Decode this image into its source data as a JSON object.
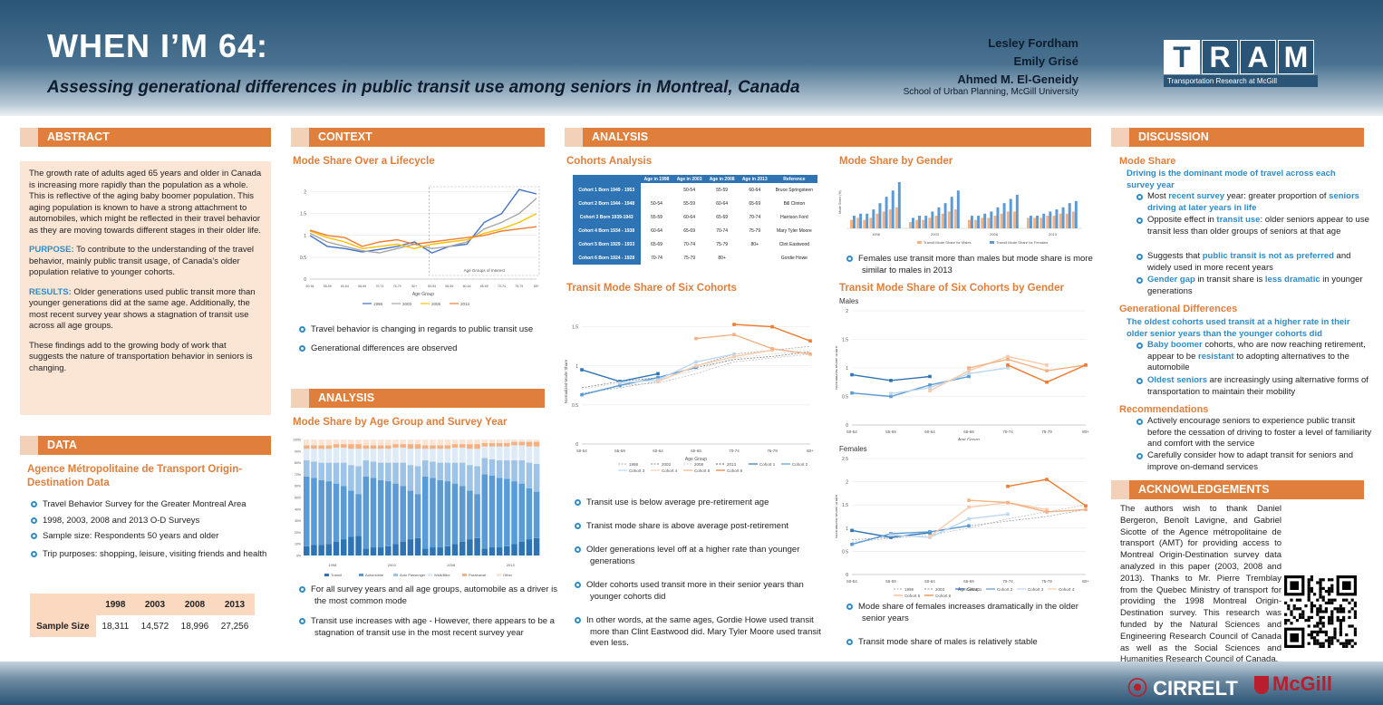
{
  "header": {
    "title": "WHEN I’M 64:",
    "subtitle": "Assessing generational differences in public transit use among seniors in Montreal, Canada",
    "authors": [
      "Lesley Fordham",
      "Emily Grisé",
      "Ahmed M. El-Geneidy"
    ],
    "affiliation": "School of Urban Planning, McGill University",
    "logo_letters": [
      "T",
      "R",
      "A",
      "M"
    ],
    "logo_sub": "Transportation Research at McGill"
  },
  "abstract": {
    "heading": "ABSTRACT",
    "p1": "The growth rate of adults aged 65 years and older in Canada is increasing more rapidly than the population as a whole.  This is reflective of the aging baby boomer population. This aging population is known to have a strong attachment to automobiles, which might be reflected in their travel behavior as they are moving towards different stages in their older life.",
    "purpose_label": "PURPOSE:",
    "purpose": " To contribute to the understanding of the travel behavior, mainly public transit usage, of Canada’s older population relative to younger cohorts.",
    "results_label": "RESULTS:",
    "results": " Older generations used public transit more than younger generations did at the same age. Additionally, the most recent survey year shows a stagnation of transit use across all age groups.",
    "p4": "These findings add to the growing body of work that suggests the nature of transportation behavior in seniors is changing."
  },
  "data": {
    "heading": "DATA",
    "subheading": "Agence Métropolitaine de Transport Origin-Destination Data",
    "bullets": [
      "Travel Behavior Survey for the Greater Montreal Area",
      "1998, 2003, 2008 and 2013 O-D Surveys",
      "Sample size: Respondents 50 years and older",
      "Trip purposes: shopping, leisure, visiting friends and health"
    ],
    "table": {
      "years": [
        "1998",
        "2003",
        "2008",
        "2013"
      ],
      "row_label": "Sample Size",
      "values": [
        "18,311",
        "14,572",
        "18,996",
        "27,256"
      ]
    }
  },
  "context": {
    "heading": "CONTEXT",
    "subheading": "Mode Share Over a Lifecycle",
    "bullets": [
      "Travel behavior is changing in regards to public transit use",
      "Generational differences are observed"
    ]
  },
  "analysis_left": {
    "heading": "ANALYSIS",
    "subheading": "Mode Share by Age Group and Survey Year",
    "bullets": [
      "For all survey years and all age groups, automobile as a driver is the most common mode",
      "Transit use increases with age - However, there appears to be a stagnation of transit use in the most recent survey year"
    ]
  },
  "analysis_main": {
    "heading": "ANALYSIS",
    "cohorts_title": "Cohorts Analysis",
    "cohort_table": {
      "headers": [
        "",
        "Age in 1998",
        "Age in 2003",
        "Age in 2008",
        "Age in 2013",
        "Reference"
      ],
      "rows": [
        [
          "Cohort 1 Born 1949 - 1953",
          "",
          "50-54",
          "55-59",
          "60-64",
          "Bruce Springsteen"
        ],
        [
          "Cohort 2 Born 1944 - 1948",
          "50-54",
          "55-59",
          "60-64",
          "65-69",
          "Bill Clinton"
        ],
        [
          "Cohort 3 Born 1939-1943",
          "55-59",
          "60-64",
          "65-69",
          "70-74",
          "Harrison Ford"
        ],
        [
          "Cohort 4 Born 1934 - 1938",
          "60-64",
          "65-69",
          "70-74",
          "75-79",
          "Mary Tyler Moore"
        ],
        [
          "Cohort 5 Born 1929 - 1933",
          "65-69",
          "70-74",
          "75-79",
          "80+",
          "Clint Eastwood"
        ],
        [
          "Cohort 6 Born 1924 - 1928",
          "70-74",
          "75-79",
          "80+",
          "",
          "Gordie Howe"
        ]
      ]
    },
    "six_title": "Transit Mode Share of Six Cohorts",
    "six_bullets": [
      "Transit use is below average pre-retirement age",
      "Tranist mode share is above average post-retirement",
      "Older generations level off at a higher rate than younger generations",
      "Older cohorts used transit more in their senior years than younger cohorts did",
      "In other words, at the same ages, Gordie Howe used transit more than Clint Eastwood did. Mary Tyler Moore used transit even less."
    ],
    "gender_title": "Mode Share by Gender",
    "gender_bullets": [
      "Females use transit more than males but mode share is more similar to males in 2013"
    ],
    "sixg_title": "Transit Mode Share of Six Cohorts by Gender",
    "sixg_bullets": [
      "Mode share of females increases dramatically in the older senior years",
      "Transit mode share of males is relatively stable"
    ]
  },
  "discussion": {
    "heading": "DISCUSSION",
    "h1": "Mode Share",
    "p1": "Driving is the dominant mode of travel across each survey year",
    "b1": [
      {
        "pre": "Most ",
        "hl": "recent survey",
        "post": " year: greater proportion of ",
        "hl2": "seniors driving at later years in life",
        "post2": ""
      },
      {
        "pre": "Opposite effect in ",
        "hl": "transit use",
        "post": ": older seniors appear to use transit less than older groups of seniors at that age",
        "hl2": "",
        "post2": ""
      },
      {
        "pre": "Suggests that ",
        "hl": "public transit is not as preferred",
        "post": " and widely used in more recent years",
        "hl2": "",
        "post2": ""
      },
      {
        "pre": "",
        "hl": "Gender gap",
        "post": " in transit share is ",
        "hl2": "less dramatic",
        "post2": " in younger generations"
      }
    ],
    "h2": "Generational Differences",
    "p2": "The oldest cohorts used transit at a higher rate in their older senior years than the younger cohorts did",
    "b2": [
      {
        "pre": "",
        "hl": "Baby boomer",
        "post": " cohorts, who are now reaching retirement, appear to be ",
        "hl2": "resistant",
        "post2": " to adopting alternatives to the automobile"
      },
      {
        "pre": "",
        "hl": "Oldest seniors",
        "post": " are increasingly using alternative forms of transportation to maintain their mobility",
        "hl2": "",
        "post2": ""
      }
    ],
    "h3": "Recommendations",
    "b3": [
      "Actively encourage seniors to experience public transit before the cessation of driving to foster a level of familiarity and comfort with the service",
      "Carefully consider how to adapt transit for seniors and improve on-demand services"
    ]
  },
  "ack": {
    "heading": "ACKNOWLEDGEMENTS",
    "text": "The authors wish to thank Daniel Bergeron, Benoît Lavigne, and Gabriel Sicotte of the Agence métropolitaine de transport (AMT) for providing access to Montreal Origin-Destination survey data analyzed in this paper (2003, 2008 and 2013). Thanks to Mr. Pierre Tremblay from the Quebec Ministry of transport for providing the 1998 Montreal Origin-Destination survey. This research was funded by the Natural Sciences and Engineering Research Council of Canada as well as the Social Sciences and Humanities Research Council of Canada."
  },
  "footer": {
    "cirrelt": "CIRRELT",
    "mcgill": "McGill"
  },
  "colors": {
    "accent": "#e07f3c",
    "blue": "#2e8cc8",
    "header": "#2a5577",
    "panel": "#fbe5d5"
  },
  "chart_data": [
    {
      "id": "lifecycle",
      "type": "line",
      "categories": [
        "50-54",
        "55-59",
        "60-64",
        "65-69",
        "70-74",
        "75-79",
        "80+",
        "50-54",
        "55-59",
        "60-64",
        "65-69",
        "70-74",
        "75-79",
        "80+"
      ],
      "series": [
        {
          "name": "1998",
          "color": "#4472c4",
          "values": [
            1.0,
            0.75,
            0.7,
            0.62,
            0.68,
            0.75,
            0.85,
            0.6,
            0.75,
            0.8,
            1.3,
            1.5,
            2.05,
            1.95
          ]
        },
        {
          "name": "2003",
          "color": "#a5a5a5",
          "values": [
            1.05,
            0.85,
            0.75,
            0.65,
            0.6,
            0.7,
            0.8,
            0.7,
            0.75,
            0.85,
            1.15,
            1.3,
            1.5,
            1.85
          ]
        },
        {
          "name": "2008",
          "color": "#ffc000",
          "values": [
            1.1,
            0.95,
            0.85,
            0.7,
            0.75,
            0.8,
            0.7,
            0.8,
            0.85,
            0.9,
            1.05,
            1.15,
            1.3,
            1.5
          ]
        },
        {
          "name": "2013",
          "color": "#ed7d31",
          "values": [
            1.12,
            1.0,
            0.95,
            0.75,
            0.85,
            0.9,
            0.8,
            0.85,
            0.9,
            0.95,
            1.0,
            1.1,
            1.15,
            1.2
          ]
        }
      ],
      "ylim": [
        0,
        2.2
      ],
      "yticks": [
        "0",
        "0.5",
        "1",
        "1.5",
        "2"
      ],
      "xlabel": "Age Group",
      "annotation": "Age Groups of Interest"
    },
    {
      "id": "agegroup",
      "type": "bar",
      "categories": [
        "1998",
        "2003",
        "2008",
        "2013"
      ],
      "groups_per_year": 8,
      "series": [
        {
          "name": "Transit",
          "color": "#2e74b5"
        },
        {
          "name": "Automobile",
          "color": "#5b9bd5"
        },
        {
          "name": "Auto Passenger",
          "color": "#9dc3e6"
        },
        {
          "name": "Walk/Bike",
          "color": "#deebf7"
        },
        {
          "name": "Paratransit",
          "color": "#f4b183"
        },
        {
          "name": "Other",
          "color": "#fbe5d6"
        }
      ],
      "ylim": [
        0,
        100
      ],
      "yticks": [
        "0%",
        "10%",
        "20%",
        "30%",
        "40%",
        "50%",
        "60%",
        "70%",
        "80%",
        "90%",
        "100%"
      ]
    },
    {
      "id": "six_cohorts",
      "type": "line",
      "categories": [
        "50-54",
        "55-59",
        "60-64",
        "65-69",
        "70-74",
        "75-79",
        "80+"
      ],
      "series": [
        {
          "name": "1998",
          "color": "#bfbfbf",
          "dashed": true,
          "values": [
            0.62,
            0.75,
            0.78,
            0.9,
            1.05,
            1.1,
            1.15
          ]
        },
        {
          "name": "2003",
          "color": "#a5a5a5",
          "dashed": true,
          "values": [
            0.65,
            0.72,
            0.8,
            1.0,
            1.15,
            1.2,
            1.25
          ]
        },
        {
          "name": "2008",
          "color": "#d9d9d9",
          "dashed": true,
          "values": [
            0.7,
            0.78,
            0.82,
            0.95,
            1.1,
            1.15,
            1.2
          ]
        },
        {
          "name": "2013",
          "color": "#7f7f7f",
          "dashed": true,
          "values": [
            0.72,
            0.8,
            0.85,
            0.98,
            1.08,
            1.12,
            1.18
          ]
        },
        {
          "name": "Cohort 1",
          "color": "#2e74b5",
          "values": [
            0.95,
            0.8,
            0.9,
            null,
            null,
            null,
            null
          ]
        },
        {
          "name": "Cohort 2",
          "color": "#5b9bd5",
          "values": [
            0.63,
            0.75,
            0.85,
            0.98,
            null,
            null,
            null
          ]
        },
        {
          "name": "Cohort 3",
          "color": "#bdd7ee",
          "values": [
            null,
            0.78,
            0.82,
            1.05,
            1.15,
            null,
            null
          ]
        },
        {
          "name": "Cohort 4",
          "color": "#f8cbad",
          "values": [
            null,
            null,
            0.8,
            1.0,
            1.12,
            1.2,
            null
          ]
        },
        {
          "name": "Cohort 5",
          "color": "#f4b183",
          "values": [
            null,
            null,
            null,
            1.35,
            1.4,
            1.22,
            1.15
          ]
        },
        {
          "name": "Cohort 6",
          "color": "#ed7d31",
          "values": [
            null,
            null,
            null,
            null,
            1.53,
            1.5,
            1.32
          ]
        }
      ],
      "ylim": [
        0,
        1.6
      ],
      "yticks": [
        "0",
        "0.5",
        "1",
        "1.5"
      ],
      "xlabel": "Age Group",
      "ylabel": "Normalized Mode Share"
    },
    {
      "id": "gender",
      "type": "bar",
      "categories": [
        "1998",
        "2003",
        "2008",
        "2013"
      ],
      "series": [
        {
          "name": "Transit Mode Share for Males",
          "color": "#f4b183",
          "values": [
            [
              4,
              5,
              4,
              5,
              7,
              8,
              9,
              10
            ],
            [
              3,
              4,
              4,
              5,
              6,
              7,
              8,
              9
            ],
            [
              4,
              4,
              5,
              5,
              6,
              7,
              8,
              8
            ],
            [
              5,
              5,
              5,
              6,
              6,
              7,
              7,
              8
            ]
          ]
        },
        {
          "name": "Transit Mode Share for Females",
          "color": "#5b9bd5",
          "values": [
            [
              6,
              7,
              7,
              9,
              12,
              15,
              18,
              22
            ],
            [
              5,
              6,
              6,
              8,
              10,
              12,
              15,
              18
            ],
            [
              6,
              6,
              7,
              8,
              10,
              12,
              14,
              16
            ],
            [
              6,
              6,
              7,
              8,
              9,
              10,
              12,
              13
            ]
          ]
        }
      ],
      "ylim": [
        0,
        25
      ],
      "ylabel": "Mode Share (%)"
    },
    {
      "id": "males",
      "type": "line",
      "title": "Males",
      "categories": [
        "50-54",
        "55-59",
        "60-64",
        "65-69",
        "70-74",
        "75-79",
        "80+"
      ],
      "series": [
        {
          "name": "Cohort 1",
          "color": "#2e74b5",
          "values": [
            0.88,
            0.78,
            0.85,
            null,
            null,
            null,
            null
          ]
        },
        {
          "name": "Cohort 2",
          "color": "#5b9bd5",
          "values": [
            0.56,
            0.5,
            0.7,
            0.85,
            null,
            null,
            null
          ]
        },
        {
          "name": "Cohort 3",
          "color": "#bdd7ee",
          "values": [
            null,
            0.55,
            0.65,
            0.9,
            1.0,
            null,
            null
          ]
        },
        {
          "name": "Cohort 4",
          "color": "#f8cbad",
          "values": [
            null,
            null,
            0.6,
            0.95,
            1.2,
            1.05,
            null
          ]
        },
        {
          "name": "Cohort 5",
          "color": "#f4b183",
          "values": [
            null,
            null,
            null,
            1.0,
            1.15,
            0.95,
            1.05
          ]
        },
        {
          "name": "Cohort 6",
          "color": "#ed7d31",
          "values": [
            null,
            null,
            null,
            null,
            1.05,
            0.75,
            1.05
          ]
        }
      ],
      "ylim": [
        0,
        2
      ],
      "yticks": [
        "0",
        "0.5",
        "1",
        "1.5",
        "2"
      ],
      "xlabel": "Age Group",
      "ylabel": "Normalized Mode Share"
    },
    {
      "id": "females",
      "type": "line",
      "title": "Females",
      "categories": [
        "50-54",
        "55-59",
        "60-64",
        "65-69",
        "70-74",
        "75-79",
        "80+"
      ],
      "series": [
        {
          "name": "1998",
          "color": "#bfbfbf",
          "dashed": true,
          "values": [
            0.7,
            0.78,
            0.85,
            1.0,
            1.2,
            1.35,
            1.5
          ]
        },
        {
          "name": "2003",
          "color": "#a5a5a5",
          "dashed": true,
          "values": [
            0.75,
            0.8,
            0.9,
            1.05,
            1.15,
            1.25,
            1.4
          ]
        },
        {
          "name": "Cohort 1",
          "color": "#2e74b5",
          "values": [
            0.95,
            0.8,
            0.9,
            null,
            null,
            null,
            null
          ]
        },
        {
          "name": "Cohort 2",
          "color": "#5b9bd5",
          "values": [
            0.65,
            0.88,
            0.92,
            1.05,
            null,
            null,
            null
          ]
        },
        {
          "name": "Cohort 3",
          "color": "#bdd7ee",
          "values": [
            null,
            0.85,
            0.8,
            1.2,
            1.3,
            null,
            null
          ]
        },
        {
          "name": "Cohort 4",
          "color": "#f8cbad",
          "values": [
            null,
            null,
            0.82,
            1.45,
            1.55,
            1.4,
            null
          ]
        },
        {
          "name": "Cohort 5",
          "color": "#f4b183",
          "values": [
            null,
            null,
            null,
            1.6,
            1.55,
            1.35,
            1.4
          ]
        },
        {
          "name": "Cohort 6",
          "color": "#ed7d31",
          "values": [
            null,
            null,
            null,
            null,
            1.9,
            2.05,
            1.48
          ]
        }
      ],
      "ylim": [
        0,
        2.5
      ],
      "yticks": [
        "0",
        "0.5",
        "1",
        "1.5",
        "2",
        "2.5"
      ],
      "xlabel": "Age Group",
      "ylabel": "Normalized Mode Share"
    }
  ]
}
